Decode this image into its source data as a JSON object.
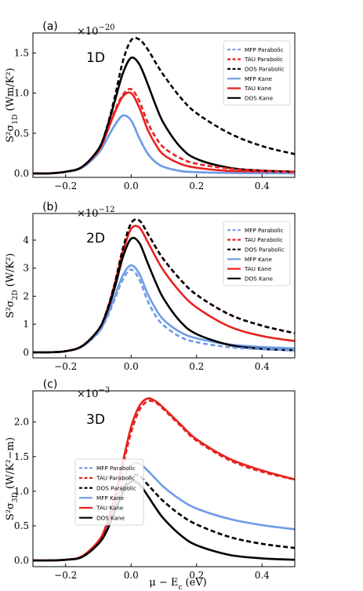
{
  "figure": {
    "xlabel": "μ − E_c (eV)"
  },
  "colors": {
    "MFP": "#6f9be8",
    "TAU": "#e8211e",
    "DOS": "#000000"
  },
  "chart_data": [
    {
      "type": "line",
      "panel_label": "(a)",
      "dim_label": "1D",
      "multiplier": "×10^−20",
      "ylabel": "S²σ_1D (Wm/K²)",
      "xlim": [
        -0.3,
        0.5
      ],
      "ylim": [
        -0.05,
        1.75
      ],
      "xticks": [
        -0.2,
        0.0,
        0.2,
        0.4
      ],
      "xtick_labels": [
        "−0.2",
        "0.0",
        "0.2",
        "0.4"
      ],
      "yticks": [
        0.0,
        0.5,
        1.0,
        1.5
      ],
      "ytick_labels": [
        "0.0",
        "0.5",
        "1.0",
        "1.5"
      ],
      "legend_position": "top-right",
      "series": [
        {
          "name": "MFP Parabolic",
          "x": [
            -0.3,
            -0.25,
            -0.2,
            -0.15,
            -0.1,
            -0.075,
            -0.05,
            -0.025,
            0.0,
            0.025,
            0.05,
            0.075,
            0.1,
            0.15,
            0.2,
            0.3,
            0.4,
            0.5
          ],
          "y": [
            0.0,
            0.0,
            0.02,
            0.07,
            0.25,
            0.42,
            0.6,
            0.72,
            0.66,
            0.44,
            0.25,
            0.14,
            0.08,
            0.03,
            0.015,
            0.005,
            0.002,
            0.001
          ]
        },
        {
          "name": "TAU Parabolic",
          "x": [
            -0.3,
            -0.25,
            -0.2,
            -0.15,
            -0.1,
            -0.075,
            -0.05,
            -0.025,
            0.0,
            0.025,
            0.05,
            0.075,
            0.1,
            0.15,
            0.2,
            0.3,
            0.4,
            0.5
          ],
          "y": [
            0.0,
            0.0,
            0.02,
            0.08,
            0.28,
            0.5,
            0.78,
            0.98,
            1.05,
            0.9,
            0.64,
            0.45,
            0.32,
            0.19,
            0.12,
            0.06,
            0.035,
            0.02
          ]
        },
        {
          "name": "DOS Parabolic",
          "x": [
            -0.3,
            -0.25,
            -0.2,
            -0.15,
            -0.1,
            -0.075,
            -0.05,
            -0.025,
            0.0,
            0.025,
            0.05,
            0.075,
            0.1,
            0.15,
            0.2,
            0.3,
            0.4,
            0.5
          ],
          "y": [
            0.0,
            0.0,
            0.02,
            0.08,
            0.3,
            0.56,
            0.95,
            1.4,
            1.66,
            1.67,
            1.55,
            1.38,
            1.22,
            0.95,
            0.75,
            0.5,
            0.34,
            0.24
          ]
        },
        {
          "name": "MFP Kane",
          "x": [
            -0.3,
            -0.25,
            -0.2,
            -0.15,
            -0.1,
            -0.075,
            -0.05,
            -0.025,
            0.0,
            0.025,
            0.05,
            0.075,
            0.1,
            0.15,
            0.2,
            0.3,
            0.4,
            0.5
          ],
          "y": [
            0.0,
            0.0,
            0.02,
            0.07,
            0.25,
            0.42,
            0.6,
            0.72,
            0.66,
            0.44,
            0.25,
            0.14,
            0.08,
            0.03,
            0.015,
            0.005,
            0.002,
            0.001
          ]
        },
        {
          "name": "TAU Kane",
          "x": [
            -0.3,
            -0.25,
            -0.2,
            -0.15,
            -0.1,
            -0.075,
            -0.05,
            -0.025,
            0.0,
            0.025,
            0.05,
            0.075,
            0.1,
            0.15,
            0.2,
            0.3,
            0.4,
            0.5
          ],
          "y": [
            0.0,
            0.0,
            0.02,
            0.08,
            0.28,
            0.5,
            0.76,
            0.96,
            1.0,
            0.82,
            0.55,
            0.36,
            0.23,
            0.12,
            0.07,
            0.03,
            0.02,
            0.012
          ]
        },
        {
          "name": "DOS Kane",
          "x": [
            -0.3,
            -0.25,
            -0.2,
            -0.15,
            -0.1,
            -0.075,
            -0.05,
            -0.025,
            0.0,
            0.025,
            0.05,
            0.075,
            0.1,
            0.15,
            0.2,
            0.3,
            0.4,
            0.5
          ],
          "y": [
            0.0,
            0.0,
            0.02,
            0.08,
            0.3,
            0.55,
            0.9,
            1.25,
            1.44,
            1.36,
            1.12,
            0.85,
            0.62,
            0.33,
            0.18,
            0.07,
            0.035,
            0.02
          ]
        }
      ]
    },
    {
      "type": "line",
      "panel_label": "(b)",
      "dim_label": "2D",
      "multiplier": "×10^−12",
      "ylabel": "S²σ_2D (W/K²)",
      "xlim": [
        -0.3,
        0.5
      ],
      "ylim": [
        -0.2,
        4.95
      ],
      "xticks": [
        -0.2,
        0.0,
        0.2,
        0.4
      ],
      "xtick_labels": [
        "−0.2",
        "0.0",
        "0.2",
        "0.4"
      ],
      "yticks": [
        0,
        1,
        2,
        3,
        4
      ],
      "ytick_labels": [
        "0",
        "1",
        "2",
        "3",
        "4"
      ],
      "legend_position": "top-right",
      "series": [
        {
          "name": "MFP Parabolic",
          "x": [
            -0.3,
            -0.25,
            -0.2,
            -0.15,
            -0.1,
            -0.075,
            -0.05,
            -0.025,
            0.0,
            0.025,
            0.05,
            0.075,
            0.1,
            0.15,
            0.2,
            0.3,
            0.4,
            0.5
          ],
          "y": [
            0.0,
            0.0,
            0.04,
            0.2,
            0.7,
            1.2,
            1.9,
            2.6,
            2.95,
            2.6,
            1.85,
            1.3,
            0.95,
            0.55,
            0.36,
            0.18,
            0.11,
            0.07
          ]
        },
        {
          "name": "TAU Parabolic",
          "x": [
            -0.3,
            -0.25,
            -0.2,
            -0.15,
            -0.1,
            -0.075,
            -0.05,
            -0.025,
            0.0,
            0.025,
            0.05,
            0.075,
            0.1,
            0.15,
            0.2,
            0.3,
            0.4,
            0.5
          ],
          "y": [
            0.0,
            0.0,
            0.04,
            0.22,
            0.8,
            1.45,
            2.45,
            3.7,
            4.6,
            4.7,
            4.25,
            3.75,
            3.3,
            2.6,
            2.05,
            1.35,
            0.95,
            0.68
          ]
        },
        {
          "name": "DOS Parabolic",
          "x": [
            -0.3,
            -0.25,
            -0.2,
            -0.15,
            -0.1,
            -0.075,
            -0.05,
            -0.025,
            0.0,
            0.025,
            0.05,
            0.075,
            0.1,
            0.15,
            0.2,
            0.3,
            0.4,
            0.5
          ],
          "y": [
            0.0,
            0.0,
            0.04,
            0.22,
            0.8,
            1.45,
            2.45,
            3.7,
            4.6,
            4.7,
            4.25,
            3.75,
            3.3,
            2.6,
            2.05,
            1.35,
            0.95,
            0.68
          ]
        },
        {
          "name": "MFP Kane",
          "x": [
            -0.3,
            -0.25,
            -0.2,
            -0.15,
            -0.1,
            -0.075,
            -0.05,
            -0.025,
            0.0,
            0.025,
            0.05,
            0.075,
            0.1,
            0.15,
            0.2,
            0.3,
            0.4,
            0.5
          ],
          "y": [
            0.0,
            0.0,
            0.04,
            0.2,
            0.72,
            1.25,
            2.0,
            2.75,
            3.1,
            2.8,
            2.1,
            1.55,
            1.15,
            0.72,
            0.5,
            0.28,
            0.19,
            0.14
          ]
        },
        {
          "name": "TAU Kane",
          "x": [
            -0.3,
            -0.25,
            -0.2,
            -0.15,
            -0.1,
            -0.075,
            -0.05,
            -0.025,
            0.0,
            0.025,
            0.05,
            0.075,
            0.1,
            0.15,
            0.2,
            0.3,
            0.4,
            0.5
          ],
          "y": [
            0.0,
            0.0,
            0.04,
            0.22,
            0.8,
            1.45,
            2.45,
            3.6,
            4.4,
            4.45,
            3.95,
            3.4,
            2.9,
            2.15,
            1.6,
            0.92,
            0.58,
            0.4
          ]
        },
        {
          "name": "DOS Kane",
          "x": [
            -0.3,
            -0.25,
            -0.2,
            -0.15,
            -0.1,
            -0.075,
            -0.05,
            -0.025,
            0.0,
            0.025,
            0.05,
            0.075,
            0.1,
            0.15,
            0.2,
            0.3,
            0.4,
            0.5
          ],
          "y": [
            0.0,
            0.0,
            0.04,
            0.22,
            0.8,
            1.4,
            2.3,
            3.4,
            4.05,
            3.9,
            3.2,
            2.5,
            1.9,
            1.1,
            0.65,
            0.26,
            0.12,
            0.07
          ]
        }
      ]
    },
    {
      "type": "line",
      "panel_label": "(c)",
      "dim_label": "3D",
      "multiplier": "×10^−3",
      "ylabel": "S²σ_3D (W/K²−m)",
      "xlim": [
        -0.3,
        0.5
      ],
      "ylim": [
        -0.09,
        2.45
      ],
      "xticks": [
        -0.2,
        0.0,
        0.2,
        0.4
      ],
      "xtick_labels": [
        "−0.2",
        "0.0",
        "0.2",
        "0.4"
      ],
      "yticks": [
        0.0,
        0.5,
        1.0,
        1.5,
        2.0
      ],
      "ytick_labels": [
        "0.0",
        "0.5",
        "1.0",
        "1.5",
        "2.0"
      ],
      "legend_position": "center-left",
      "series": [
        {
          "name": "MFP Parabolic",
          "x": [
            -0.3,
            -0.25,
            -0.2,
            -0.15,
            -0.1,
            -0.075,
            -0.05,
            -0.025,
            0.0,
            0.025,
            0.05,
            0.075,
            0.1,
            0.15,
            0.2,
            0.3,
            0.4,
            0.5
          ],
          "y": [
            0.0,
            0.0,
            0.01,
            0.05,
            0.24,
            0.43,
            0.72,
            1.02,
            1.22,
            1.22,
            1.1,
            0.97,
            0.85,
            0.66,
            0.52,
            0.34,
            0.24,
            0.18
          ]
        },
        {
          "name": "TAU Parabolic",
          "x": [
            -0.3,
            -0.25,
            -0.2,
            -0.15,
            -0.1,
            -0.075,
            -0.05,
            -0.025,
            0.0,
            0.025,
            0.05,
            0.075,
            0.1,
            0.15,
            0.2,
            0.3,
            0.4,
            0.5
          ],
          "y": [
            0.0,
            0.0,
            0.01,
            0.06,
            0.27,
            0.5,
            0.88,
            1.37,
            1.85,
            2.17,
            2.3,
            2.28,
            2.18,
            1.95,
            1.73,
            1.45,
            1.28,
            1.17
          ]
        },
        {
          "name": "DOS Parabolic",
          "x": [
            -0.3,
            -0.25,
            -0.2,
            -0.15,
            -0.1,
            -0.075,
            -0.05,
            -0.025,
            0.0,
            0.025,
            0.05,
            0.075,
            0.1,
            0.15,
            0.2,
            0.3,
            0.4,
            0.5
          ],
          "y": [
            0.0,
            0.0,
            0.01,
            0.05,
            0.24,
            0.43,
            0.72,
            1.02,
            1.22,
            1.22,
            1.1,
            0.97,
            0.85,
            0.66,
            0.52,
            0.34,
            0.24,
            0.18
          ]
        },
        {
          "name": "MFP Kane",
          "x": [
            -0.3,
            -0.25,
            -0.2,
            -0.15,
            -0.1,
            -0.075,
            -0.05,
            -0.025,
            0.0,
            0.025,
            0.05,
            0.075,
            0.1,
            0.15,
            0.2,
            0.3,
            0.4,
            0.5
          ],
          "y": [
            0.0,
            0.0,
            0.01,
            0.05,
            0.26,
            0.47,
            0.8,
            1.16,
            1.38,
            1.4,
            1.3,
            1.18,
            1.06,
            0.88,
            0.75,
            0.6,
            0.51,
            0.45
          ]
        },
        {
          "name": "TAU Kane",
          "x": [
            -0.3,
            -0.25,
            -0.2,
            -0.15,
            -0.1,
            -0.075,
            -0.05,
            -0.025,
            0.0,
            0.025,
            0.05,
            0.075,
            0.1,
            0.15,
            0.2,
            0.3,
            0.4,
            0.5
          ],
          "y": [
            0.0,
            0.0,
            0.01,
            0.06,
            0.28,
            0.52,
            0.92,
            1.43,
            1.93,
            2.23,
            2.34,
            2.3,
            2.2,
            1.97,
            1.75,
            1.47,
            1.3,
            1.17
          ]
        },
        {
          "name": "DOS Kane",
          "x": [
            -0.3,
            -0.25,
            -0.2,
            -0.15,
            -0.1,
            -0.075,
            -0.05,
            -0.025,
            0.0,
            0.025,
            0.05,
            0.075,
            0.1,
            0.15,
            0.2,
            0.3,
            0.4,
            0.5
          ],
          "y": [
            0.0,
            0.0,
            0.01,
            0.05,
            0.24,
            0.42,
            0.7,
            0.98,
            1.14,
            1.1,
            0.94,
            0.76,
            0.6,
            0.37,
            0.22,
            0.08,
            0.03,
            0.01
          ]
        }
      ]
    }
  ]
}
